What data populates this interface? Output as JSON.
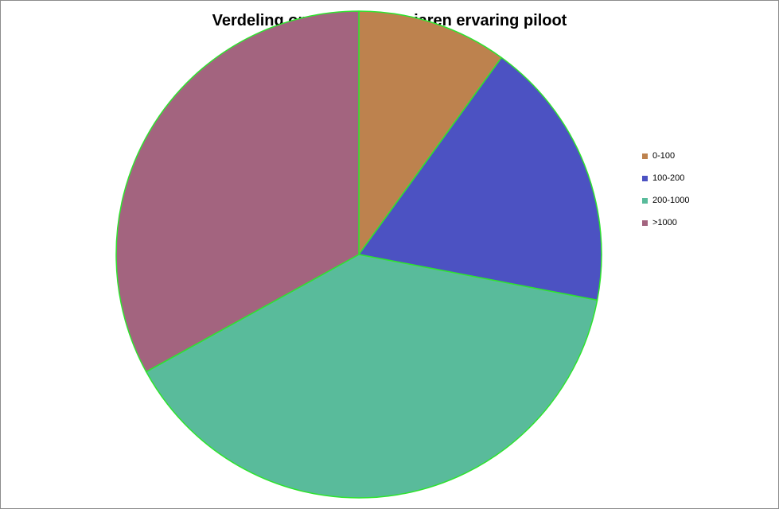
{
  "chart_data": {
    "type": "pie",
    "title": "Verdeling ongevallen naar jaren ervaring piloot",
    "categories": [
      "0-100",
      "100-200",
      "200-1000",
      ">1000"
    ],
    "values": [
      10,
      18,
      39,
      33
    ],
    "colors": [
      "#bd824e",
      "#4c52c2",
      "#59bb9b",
      "#a3647f"
    ],
    "slice_border_color": "#2ee32e",
    "legend": "right"
  }
}
